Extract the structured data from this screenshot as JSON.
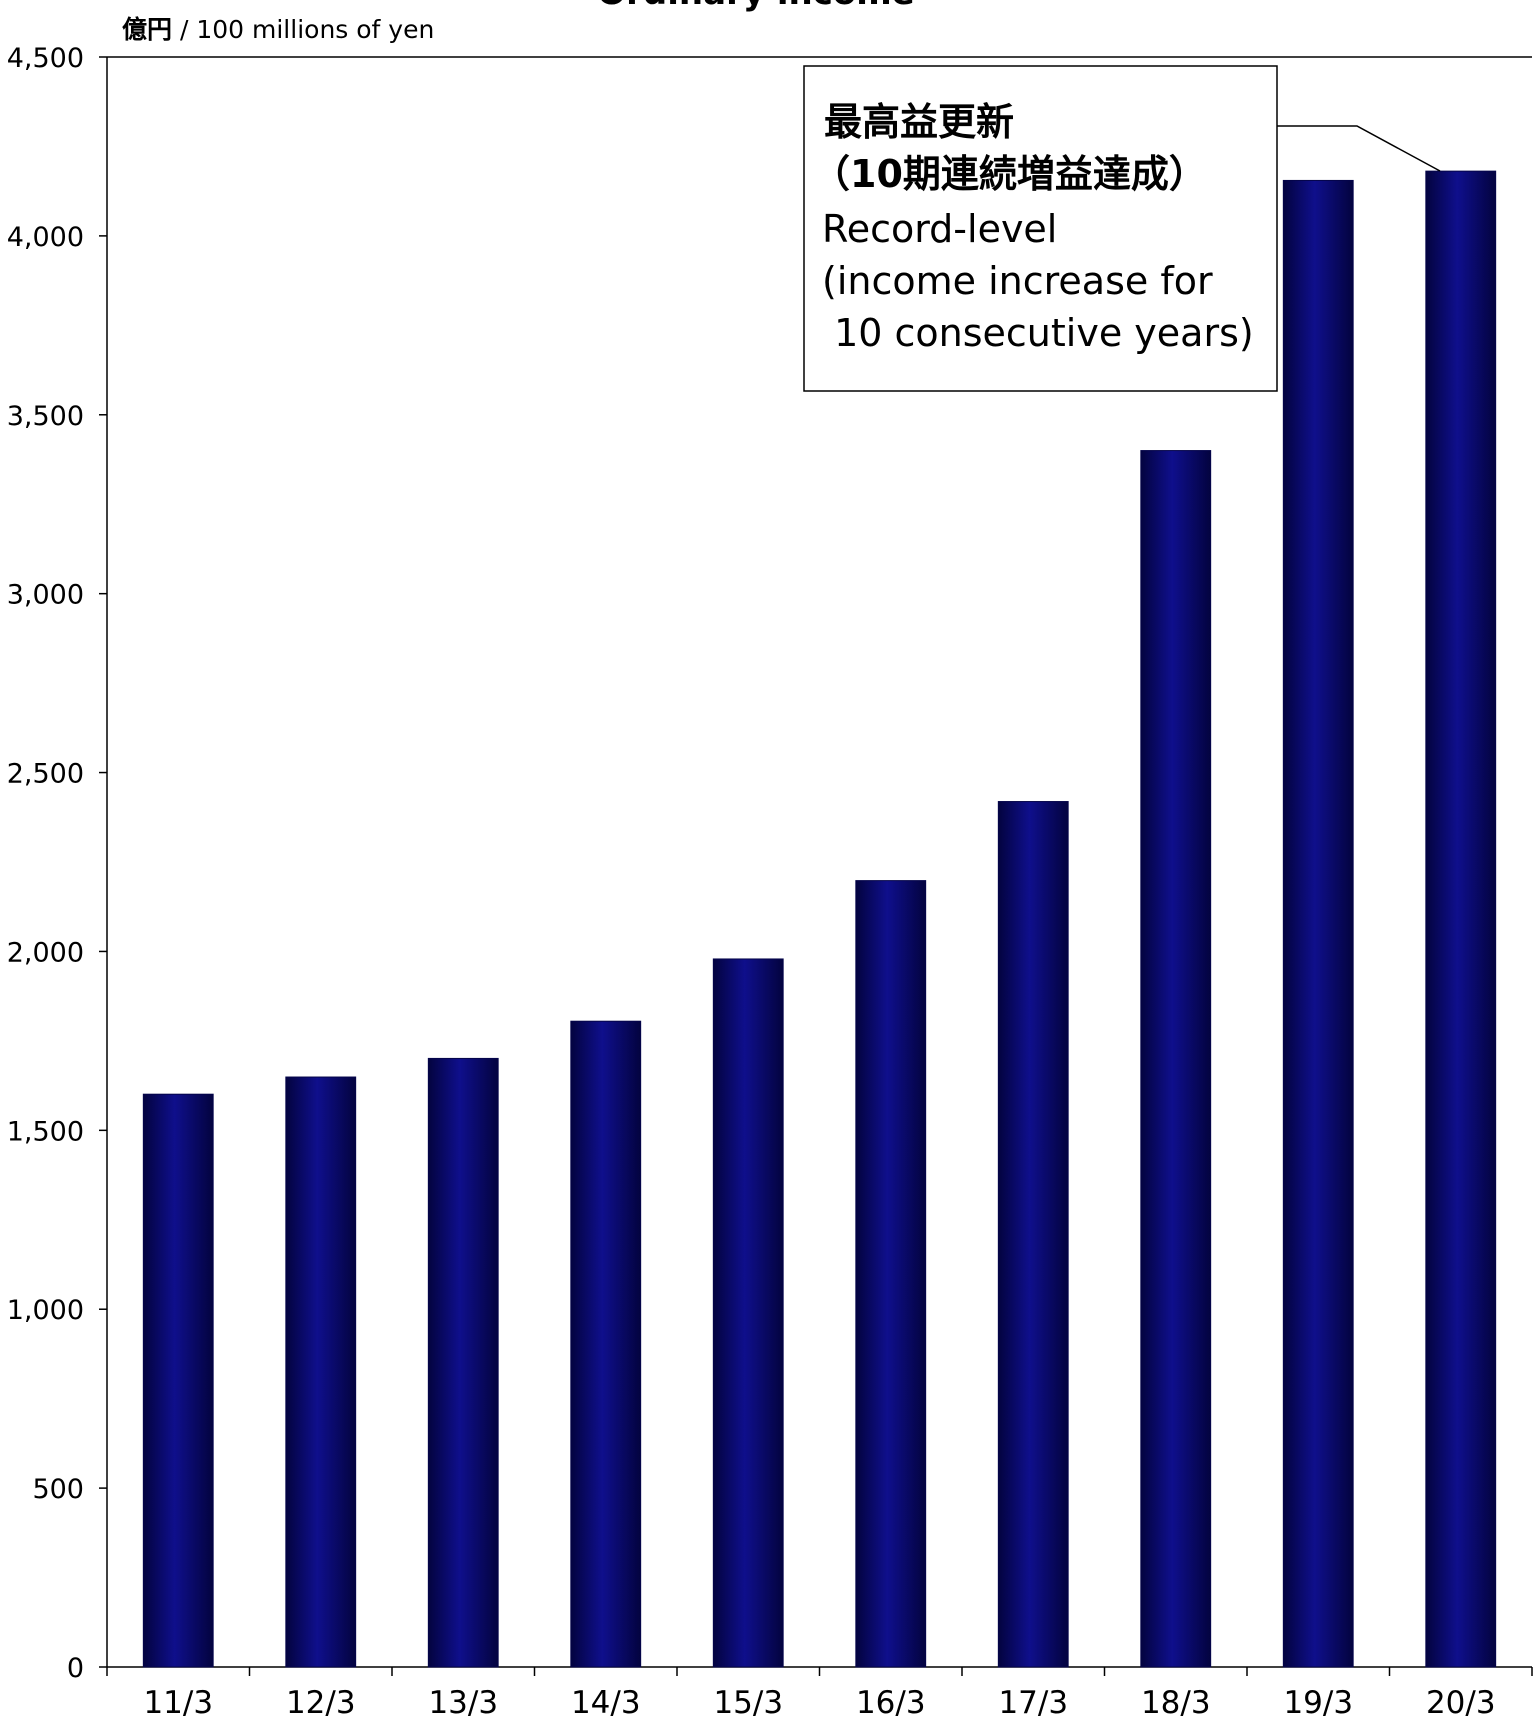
{
  "chart_data": {
    "type": "bar",
    "title": "Ordinary income",
    "unit_label_jp": "億円",
    "unit_label_sep": " / ",
    "unit_label_en": "100 millions of yen",
    "ylabel": "",
    "xlabel": "",
    "ylim": [
      0,
      4500
    ],
    "yticks": [
      0,
      500,
      1000,
      1500,
      2000,
      2500,
      3000,
      3500,
      4000,
      4500
    ],
    "ytick_labels": [
      "0",
      "500",
      "1,000",
      "1,500",
      "2,000",
      "2,500",
      "3,000",
      "3,500",
      "4,000",
      "4,500"
    ],
    "categories": [
      "11/3",
      "12/3",
      "13/3",
      "14/3",
      "15/3",
      "16/3",
      "17/3",
      "18/3",
      "19/3",
      "20/3"
    ],
    "values": [
      1601,
      1649,
      1701,
      1805,
      1979,
      2198,
      2419,
      3400,
      4155,
      4181
    ],
    "bar_color": "#0a0a78",
    "grid": false,
    "legend": "none",
    "annotation": {
      "lines": [
        "最高益更新",
        "（10期連続増益達成）",
        "Record-level",
        "(income increase for",
        " 10 consecutive years)"
      ],
      "target_category": "20/3"
    }
  }
}
